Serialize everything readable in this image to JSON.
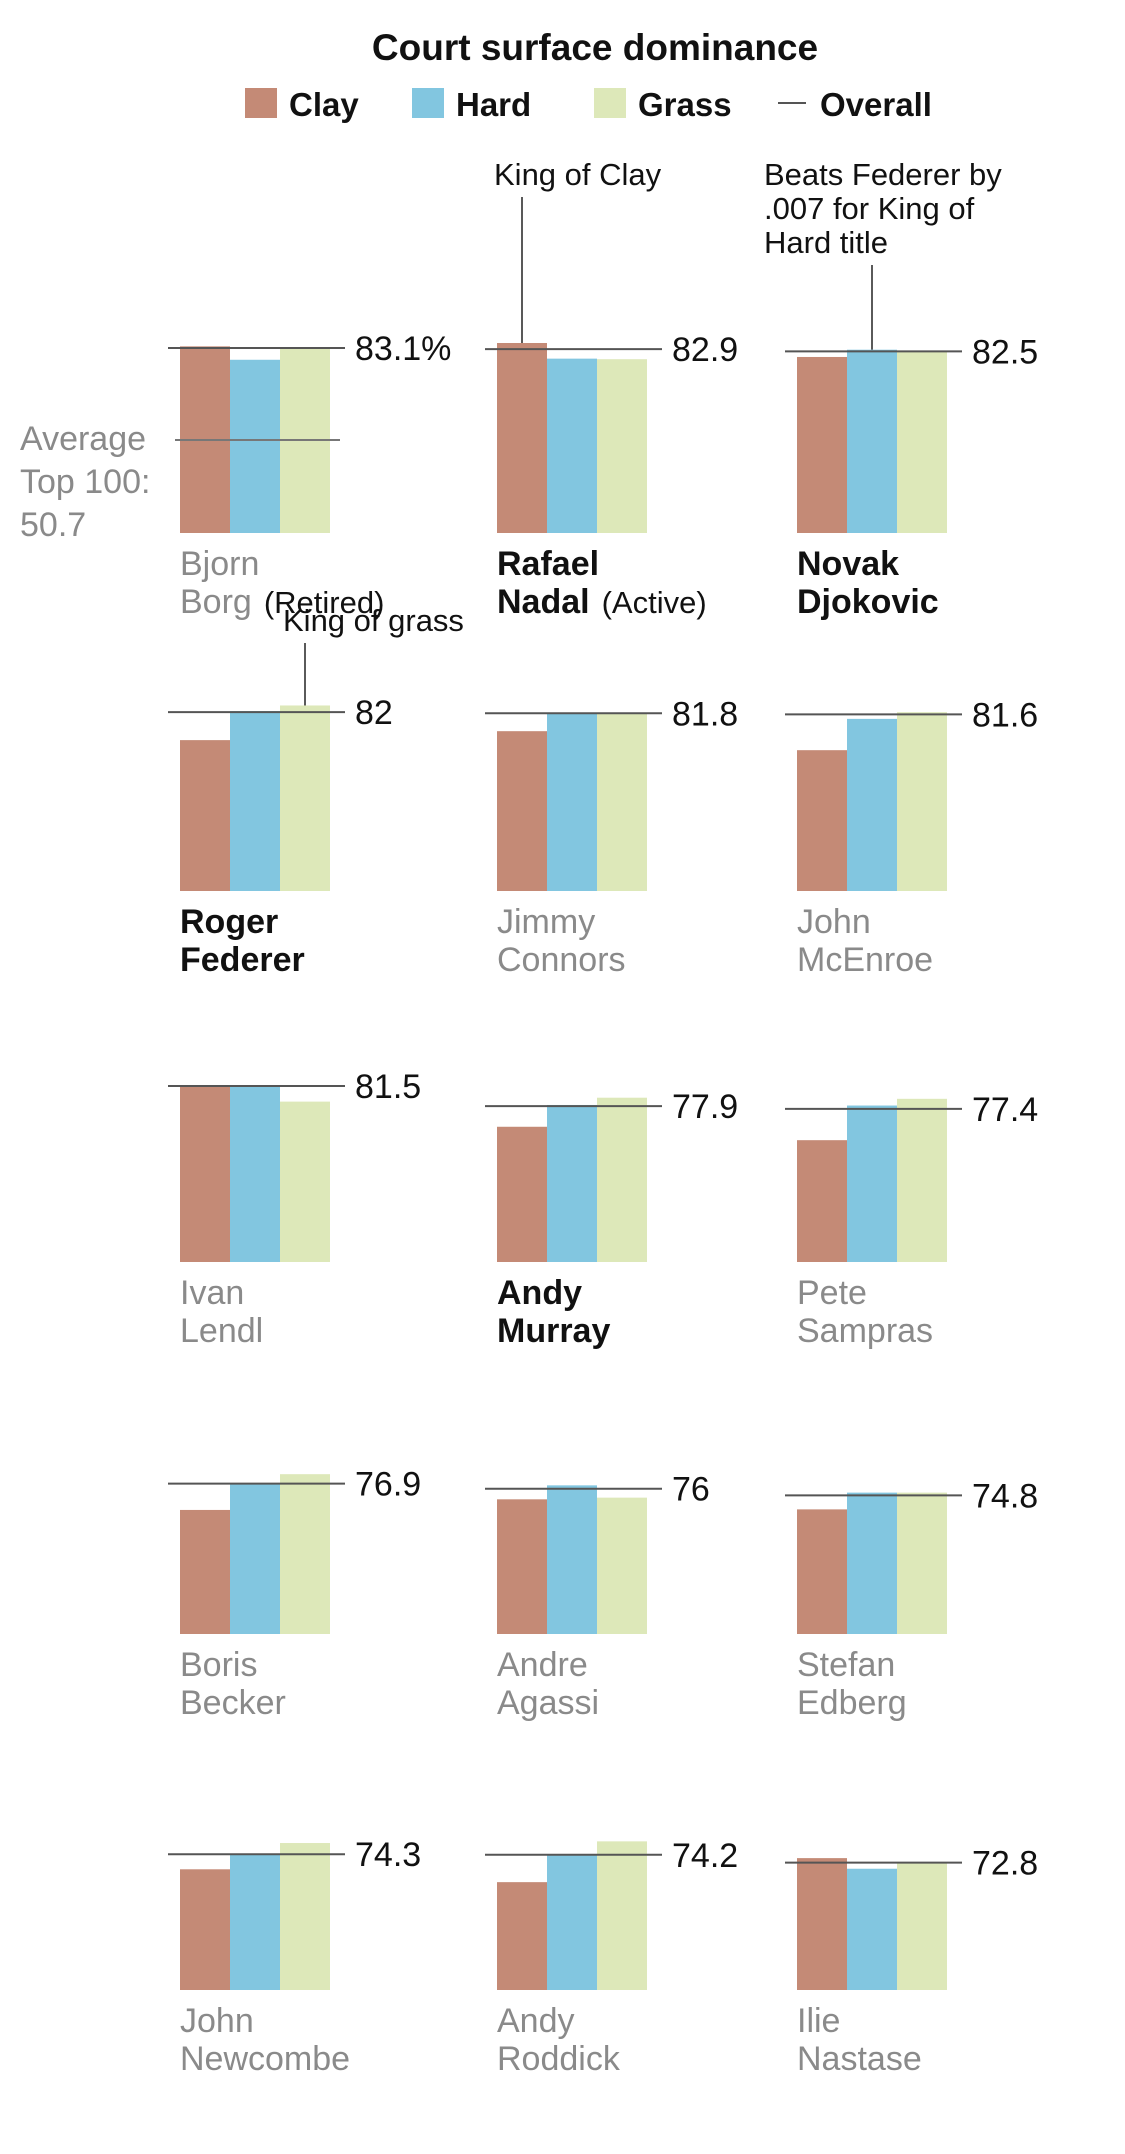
{
  "chart_data": {
    "type": "bar",
    "title": "Court surface dominance",
    "legend": [
      "Clay",
      "Hard",
      "Grass",
      "Overall"
    ],
    "legend_position": "top",
    "series_names": [
      "Clay",
      "Hard",
      "Grass"
    ],
    "colors": {
      "Clay": "#c48a76",
      "Hard": "#82c6e0",
      "Grass": "#dde8b9",
      "Overall": "#555555",
      "retired_text": "#8a8a8a"
    },
    "ylim": [
      50,
      84
    ],
    "grid": false,
    "average_line": {
      "value": 50.7,
      "label_lines": [
        "Average",
        "Top 100:",
        "50.7"
      ]
    },
    "players": [
      {
        "first": "Bjorn",
        "last": "Borg",
        "active": false,
        "status": "(Retired)",
        "overall": 83.1,
        "overall_label": "83.1%",
        "clay": 83.4,
        "hard": 81.0,
        "grass": 83.0
      },
      {
        "first": "Rafael",
        "last": "Nadal",
        "active": true,
        "status": "(Active)",
        "overall": 82.9,
        "overall_label": "82.9",
        "clay": 84.0,
        "hard": 81.2,
        "grass": 81.1
      },
      {
        "first": "Novak",
        "last": "Djokovic",
        "active": true,
        "overall": 82.5,
        "overall_label": "82.5",
        "clay": 81.5,
        "hard": 82.8,
        "grass": 82.6
      },
      {
        "first": "Roger",
        "last": "Federer",
        "active": true,
        "overall": 82.0,
        "overall_label": "82",
        "clay": 77.0,
        "hard": 82.2,
        "grass": 83.2
      },
      {
        "first": "Jimmy",
        "last": "Connors",
        "active": false,
        "overall": 81.8,
        "overall_label": "81.8",
        "clay": 78.6,
        "hard": 81.9,
        "grass": 81.7
      },
      {
        "first": "John",
        "last": "McEnroe",
        "active": false,
        "overall": 81.6,
        "overall_label": "81.6",
        "clay": 75.2,
        "hard": 80.8,
        "grass": 82.0
      },
      {
        "first": "Ivan",
        "last": "Lendl",
        "active": false,
        "overall": 81.5,
        "overall_label": "81.5",
        "clay": 81.6,
        "hard": 81.6,
        "grass": 78.7
      },
      {
        "first": "Andy",
        "last": "Murray",
        "active": true,
        "overall": 77.9,
        "overall_label": "77.9",
        "clay": 74.2,
        "hard": 78.1,
        "grass": 79.4
      },
      {
        "first": "Pete",
        "last": "Sampras",
        "active": false,
        "overall": 77.4,
        "overall_label": "77.4",
        "clay": 71.8,
        "hard": 78.0,
        "grass": 79.2
      },
      {
        "first": "Boris",
        "last": "Becker",
        "active": false,
        "overall": 76.9,
        "overall_label": "76.9",
        "clay": 72.2,
        "hard": 76.9,
        "grass": 78.6
      },
      {
        "first": "Andre",
        "last": "Agassi",
        "active": false,
        "overall": 76.0,
        "overall_label": "76",
        "clay": 74.1,
        "hard": 76.6,
        "grass": 74.4
      },
      {
        "first": "Stefan",
        "last": "Edberg",
        "active": false,
        "overall": 74.8,
        "overall_label": "74.8",
        "clay": 72.3,
        "hard": 75.3,
        "grass": 75.3
      },
      {
        "first": "John",
        "last": "Newcombe",
        "active": false,
        "overall": 74.3,
        "overall_label": "74.3",
        "clay": 71.6,
        "hard": 74.3,
        "grass": 76.3
      },
      {
        "first": "Andy",
        "last": "Roddick",
        "active": false,
        "overall": 74.2,
        "overall_label": "74.2",
        "clay": 69.3,
        "hard": 74.3,
        "grass": 76.6
      },
      {
        "first": "Ilie",
        "last": "Nastase",
        "active": false,
        "overall": 72.8,
        "overall_label": "72.8",
        "clay": 73.6,
        "hard": 71.7,
        "grass": 72.9
      }
    ],
    "annotations": [
      {
        "player": "Rafael Nadal",
        "surface": "clay",
        "lines": [
          "King of Clay"
        ]
      },
      {
        "player": "Novak Djokovic",
        "surface": "hard",
        "lines": [
          "Beats Federer by",
          ".007 for King of",
          "Hard title"
        ]
      },
      {
        "player": "Roger Federer",
        "surface": "grass",
        "lines": [
          "King of grass"
        ]
      }
    ]
  }
}
